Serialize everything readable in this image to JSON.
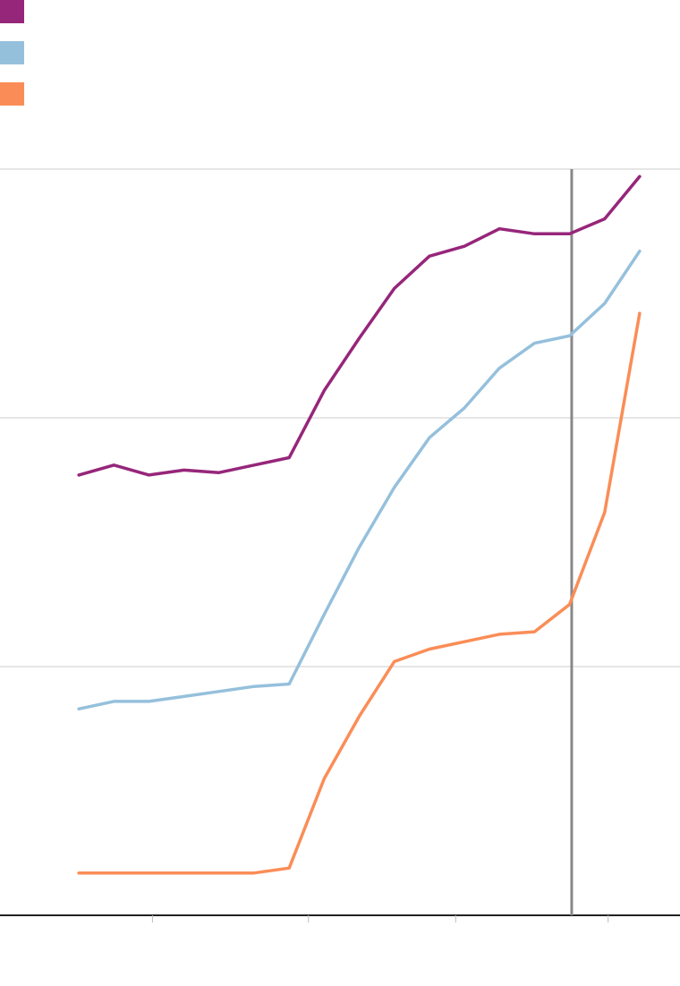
{
  "chart_data": {
    "type": "line",
    "title": "",
    "xlabel": "",
    "ylabel": "",
    "x": [
      1,
      2,
      3,
      4,
      5,
      6,
      7,
      8,
      9,
      10,
      11,
      12,
      13,
      14,
      15,
      16,
      17
    ],
    "xlim": [
      -1.25,
      18.15
    ],
    "ylim": [
      0,
      3
    ],
    "y_gridlines": [
      0,
      1,
      2,
      3
    ],
    "x_ticks": [
      3.1,
      7.55,
      11.75,
      16.1
    ],
    "reference_line_x": 15.06,
    "grid": true,
    "legend_position": "top-left",
    "series": [
      {
        "color": "#96267a",
        "values": [
          1.77,
          1.81,
          1.77,
          1.79,
          1.78,
          1.81,
          1.84,
          2.11,
          2.32,
          2.52,
          2.65,
          2.69,
          2.76,
          2.74,
          2.74,
          2.8,
          2.97
        ]
      },
      {
        "color": "#95c0dc",
        "values": [
          0.83,
          0.86,
          0.86,
          0.88,
          0.9,
          0.92,
          0.93,
          1.21,
          1.48,
          1.72,
          1.92,
          2.04,
          2.2,
          2.3,
          2.33,
          2.46,
          2.67
        ]
      },
      {
        "color": "#fa8d57",
        "values": [
          0.17,
          0.17,
          0.17,
          0.17,
          0.17,
          0.17,
          0.19,
          0.55,
          0.8,
          1.02,
          1.07,
          1.1,
          1.13,
          1.14,
          1.25,
          1.62,
          2.42
        ]
      }
    ]
  }
}
